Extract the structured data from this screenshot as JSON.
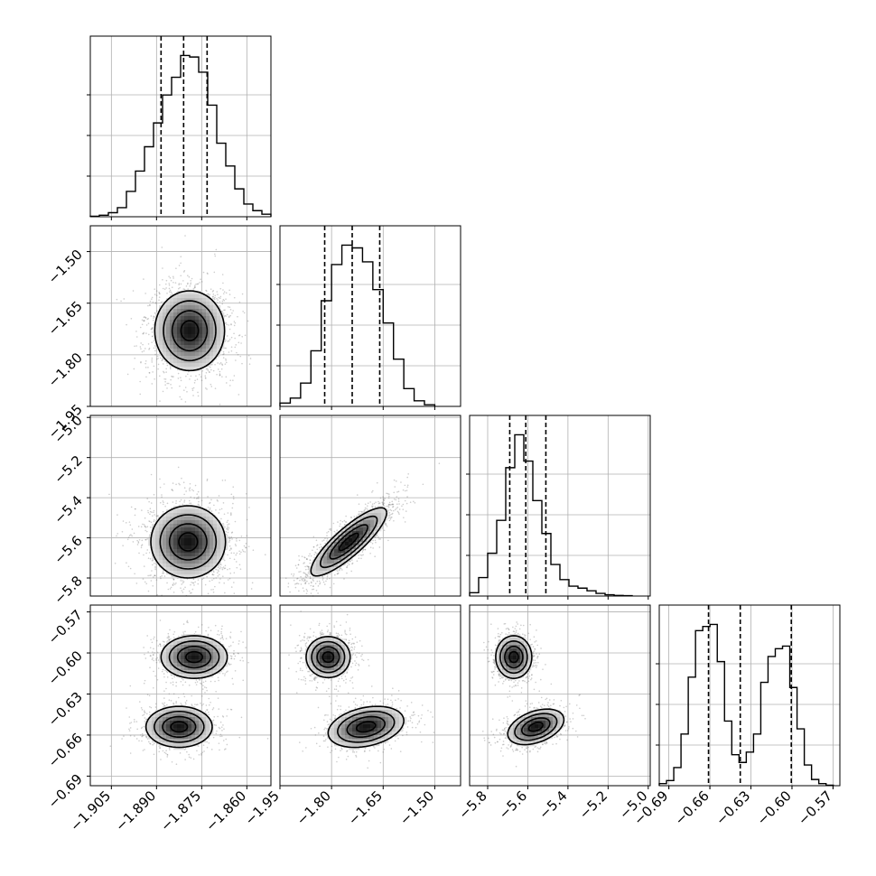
{
  "chart_data": {
    "type": "corner",
    "grid": true,
    "parameters": 4,
    "histograms": [
      {
        "param": 0,
        "xlim": [
          -1.912,
          -1.852
        ],
        "quantiles": [
          -1.8885,
          -1.881,
          -1.8732
        ],
        "bins": [
          -1.912,
          -1.909,
          -1.906,
          -1.903,
          -1.9,
          -1.897,
          -1.894,
          -1.891,
          -1.888,
          -1.885,
          -1.882,
          -1.879,
          -1.876,
          -1.873,
          -1.87,
          -1.867,
          -1.864,
          -1.861,
          -1.858,
          -1.855,
          -1.852
        ],
        "counts": [
          0.1,
          0.3,
          0.8,
          1.8,
          5.0,
          9.0,
          13.8,
          18.5,
          24.0,
          27.5,
          31.8,
          31.5,
          28.5,
          22.0,
          14.5,
          10.0,
          5.5,
          2.5,
          1.2,
          0.5
        ]
      },
      {
        "param": 1,
        "xlim": [
          -1.95,
          -1.425
        ],
        "quantiles": [
          -1.82,
          -1.74,
          -1.66
        ],
        "bins": [
          -1.95,
          -1.92,
          -1.89,
          -1.86,
          -1.83,
          -1.8,
          -1.77,
          -1.74,
          -1.71,
          -1.68,
          -1.65,
          -1.62,
          -1.59,
          -1.56,
          -1.53,
          -1.5
        ],
        "counts": [
          0.6,
          1.5,
          4.2,
          10.0,
          19.0,
          25.5,
          29.0,
          28.5,
          26.0,
          21.0,
          15.0,
          8.5,
          3.2,
          1.0,
          0.3
        ]
      },
      {
        "param": 2,
        "xlim": [
          -5.89,
          -4.99
        ],
        "quantiles": [
          -5.69,
          -5.61,
          -5.51
        ],
        "bins": [
          -5.89,
          -5.845,
          -5.8,
          -5.755,
          -5.71,
          -5.665,
          -5.62,
          -5.575,
          -5.53,
          -5.485,
          -5.44,
          -5.395,
          -5.35,
          -5.305,
          -5.26,
          -5.215,
          -5.17,
          -5.125,
          -5.08
        ],
        "counts": [
          0.5,
          2.8,
          6.5,
          11.5,
          19.5,
          24.5,
          20.5,
          14.5,
          9.5,
          4.8,
          2.5,
          1.5,
          1.2,
          0.8,
          0.4,
          0.2,
          0.1,
          0.05
        ]
      },
      {
        "param": 3,
        "xlim": [
          -0.697,
          -0.565
        ],
        "quantiles": [
          -0.661,
          -0.6378,
          -0.6005
        ],
        "bins": [
          -0.697,
          -0.6917,
          -0.6864,
          -0.6811,
          -0.6758,
          -0.6705,
          -0.6652,
          -0.6599,
          -0.6546,
          -0.6493,
          -0.644,
          -0.6387,
          -0.6334,
          -0.6281,
          -0.6228,
          -0.6175,
          -0.6122,
          -0.6069,
          -0.6016,
          -0.5963,
          -0.591,
          -0.5857,
          -0.5804,
          -0.5751,
          -0.5698
        ],
        "counts": [
          0.4,
          1.0,
          3.5,
          10.0,
          21.0,
          30.0,
          30.8,
          31.2,
          24.0,
          12.5,
          6.0,
          4.5,
          6.5,
          10.0,
          20.0,
          25.0,
          26.5,
          27.0,
          19.0,
          11.0,
          4.0,
          1.2,
          0.4,
          0.1
        ]
      }
    ],
    "pairs": [
      {
        "x": 0,
        "y": 1,
        "modes": [
          {
            "cx": -1.879,
            "cy": -1.73,
            "sx": 0.0058,
            "sy": 0.058,
            "rho": 0.0,
            "w": 1.0
          }
        ]
      },
      {
        "x": 0,
        "y": 2,
        "modes": [
          {
            "cx": -1.8795,
            "cy": -5.62,
            "sx": 0.0062,
            "sy": 0.09,
            "rho": 0.0,
            "w": 1.0
          }
        ]
      },
      {
        "x": 1,
        "y": 2,
        "modes": [
          {
            "cx": -1.75,
            "cy": -5.62,
            "sx": 0.055,
            "sy": 0.085,
            "rho": 0.85,
            "w": 1.0
          }
        ]
      },
      {
        "x": 0,
        "y": 3,
        "modes": [
          {
            "cx": -1.8775,
            "cy": -0.603,
            "sx": 0.0055,
            "sy": 0.0078,
            "rho": 0.0,
            "w": 0.5
          },
          {
            "cx": -1.8825,
            "cy": -0.654,
            "sx": 0.0055,
            "sy": 0.0075,
            "rho": 0.0,
            "w": 0.5
          }
        ]
      },
      {
        "x": 1,
        "y": 3,
        "modes": [
          {
            "cx": -1.81,
            "cy": -0.603,
            "sx": 0.032,
            "sy": 0.0075,
            "rho": 0.0,
            "w": 0.5
          },
          {
            "cx": -1.7,
            "cy": -0.654,
            "sx": 0.055,
            "sy": 0.0075,
            "rho": 0.3,
            "w": 0.5
          }
        ]
      },
      {
        "x": 2,
        "y": 3,
        "modes": [
          {
            "cx": -5.67,
            "cy": -0.603,
            "sx": 0.045,
            "sy": 0.0078,
            "rho": 0.0,
            "w": 0.5
          },
          {
            "cx": -5.56,
            "cy": -0.654,
            "sx": 0.07,
            "sy": 0.0065,
            "rho": 0.4,
            "w": 0.5
          }
        ]
      }
    ],
    "axes": [
      {
        "param": 0,
        "ticks": [
          -1.905,
          -1.89,
          -1.875,
          -1.86
        ],
        "tick_labels": [
          "−1.905",
          "−1.890",
          "−1.875",
          "−1.860"
        ]
      },
      {
        "param": 1,
        "ticks": [
          -1.95,
          -1.8,
          -1.65,
          -1.5
        ],
        "tick_labels": [
          "−1.95",
          "−1.80",
          "−1.65",
          "−1.50"
        ]
      },
      {
        "param": 2,
        "ticks": [
          -5.8,
          -5.6,
          -5.4,
          -5.2,
          -5.0
        ],
        "tick_labels": [
          "−5.8",
          "−5.6",
          "−5.4",
          "−5.2",
          "−5.0"
        ]
      },
      {
        "param": 3,
        "ticks": [
          -0.69,
          -0.66,
          -0.63,
          -0.6,
          -0.57
        ],
        "tick_labels": [
          "−0.69",
          "−0.66",
          "−0.63",
          "−0.60",
          "−0.57"
        ]
      }
    ]
  }
}
